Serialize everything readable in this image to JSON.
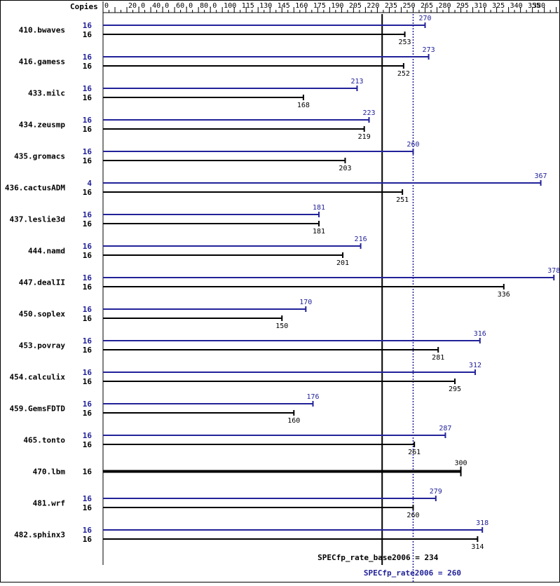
{
  "chart_data": {
    "type": "bar",
    "orientation": "horizontal",
    "axis_label": "Copies",
    "ticks": [
      "0",
      "20.0",
      "40.0",
      "60.0",
      "80.0",
      "100",
      "115",
      "130",
      "145",
      "160",
      "175",
      "190",
      "205",
      "220",
      "235",
      "250",
      "265",
      "280",
      "295",
      "310",
      "325",
      "340",
      "355",
      "380"
    ],
    "xlim": [
      0,
      380
    ],
    "series": [
      {
        "name": "SPECfp_rate2006",
        "color": "#22229a"
      },
      {
        "name": "SPECfp_rate_base2006",
        "color": "#000000"
      }
    ],
    "benchmarks": [
      {
        "name": "410.bwaves",
        "peak_copies": "16",
        "peak": 270,
        "base_copies": "16",
        "base": 253
      },
      {
        "name": "416.gamess",
        "peak_copies": "16",
        "peak": 273,
        "base_copies": "16",
        "base": 252
      },
      {
        "name": "433.milc",
        "peak_copies": "16",
        "peak": 213,
        "base_copies": "16",
        "base": 168
      },
      {
        "name": "434.zeusmp",
        "peak_copies": "16",
        "peak": 223,
        "base_copies": "16",
        "base": 219
      },
      {
        "name": "435.gromacs",
        "peak_copies": "16",
        "peak": 260,
        "base_copies": "16",
        "base": 203
      },
      {
        "name": "436.cactusADM",
        "peak_copies": "4",
        "peak": 367,
        "base_copies": "16",
        "base": 251
      },
      {
        "name": "437.leslie3d",
        "peak_copies": "16",
        "peak": 181,
        "base_copies": "16",
        "base": 181
      },
      {
        "name": "444.namd",
        "peak_copies": "16",
        "peak": 216,
        "base_copies": "16",
        "base": 201
      },
      {
        "name": "447.dealII",
        "peak_copies": "16",
        "peak": 378,
        "base_copies": "16",
        "base": 336
      },
      {
        "name": "450.soplex",
        "peak_copies": "16",
        "peak": 170,
        "base_copies": "16",
        "base": 150
      },
      {
        "name": "453.povray",
        "peak_copies": "16",
        "peak": 316,
        "base_copies": "16",
        "base": 281
      },
      {
        "name": "454.calculix",
        "peak_copies": "16",
        "peak": 312,
        "base_copies": "16",
        "base": 295
      },
      {
        "name": "459.GemsFDTD",
        "peak_copies": "16",
        "peak": 176,
        "base_copies": "16",
        "base": 160
      },
      {
        "name": "465.tonto",
        "peak_copies": "16",
        "peak": 287,
        "base_copies": "16",
        "base": 261
      },
      {
        "name": "470.lbm",
        "peak_copies": null,
        "peak": null,
        "base_copies": "16",
        "base": 300,
        "combined": true
      },
      {
        "name": "481.wrf",
        "peak_copies": "16",
        "peak": 279,
        "base_copies": "16",
        "base": 260
      },
      {
        "name": "482.sphinx3",
        "peak_copies": "16",
        "peak": 318,
        "base_copies": "16",
        "base": 314
      }
    ],
    "base_summary": {
      "label": "SPECfp_rate_base2006 = 234",
      "value": 234
    },
    "peak_summary": {
      "label": "SPECfp_rate2006 = 260",
      "value": 260
    }
  }
}
